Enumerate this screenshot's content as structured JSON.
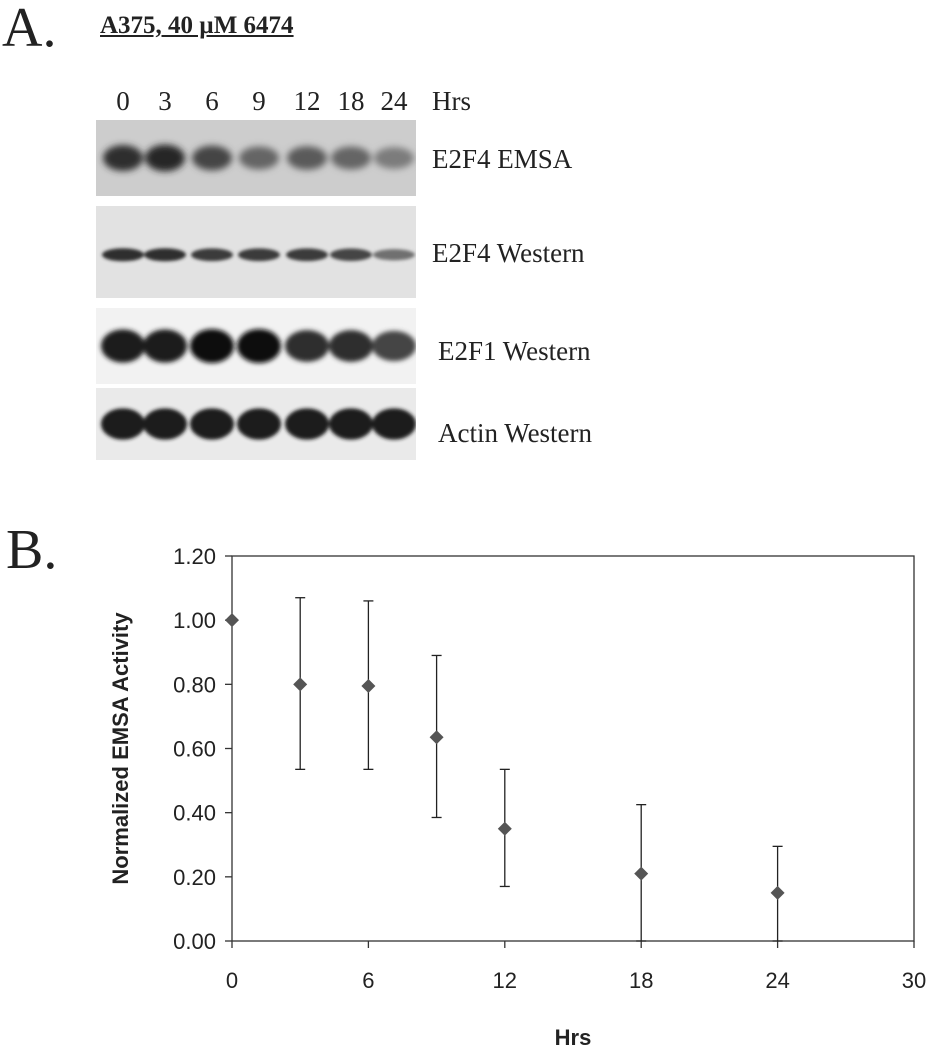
{
  "panel_a": {
    "letter": "A.",
    "title": "A375, 40 µM 6474",
    "lanes": [
      "0",
      "3",
      "6",
      "9",
      "12",
      "18",
      "24"
    ],
    "unit": "Hrs",
    "rows": [
      {
        "label": "E2F4 EMSA",
        "intensity": [
          0.85,
          0.9,
          0.75,
          0.6,
          0.65,
          0.6,
          0.5
        ]
      },
      {
        "label": "E2F4 Western",
        "intensity": [
          0.85,
          0.85,
          0.8,
          0.8,
          0.8,
          0.75,
          0.55
        ]
      },
      {
        "label": "E2F1 Western",
        "intensity": [
          0.95,
          0.95,
          1.0,
          1.0,
          0.85,
          0.85,
          0.75
        ]
      },
      {
        "label": "Actin Western",
        "intensity": [
          0.95,
          0.95,
          0.95,
          0.95,
          0.95,
          0.95,
          0.95
        ]
      }
    ]
  },
  "panel_b": {
    "letter": "B."
  },
  "chart_data": {
    "type": "scatter",
    "xlabel": "Hrs",
    "ylabel": "Normalized EMSA Activity",
    "xlim": [
      0,
      30
    ],
    "ylim": [
      0,
      1.2
    ],
    "x_ticks": [
      "0",
      "6",
      "12",
      "18",
      "24",
      "30"
    ],
    "y_ticks": [
      "0.00",
      "0.20",
      "0.40",
      "0.60",
      "0.80",
      "1.00",
      "1.20"
    ],
    "marker": "diamond",
    "marker_color": "#555555",
    "points": [
      {
        "x": 0,
        "y": 1.0,
        "err_low": 1.0,
        "err_high": 1.0
      },
      {
        "x": 3,
        "y": 0.8,
        "err_low": 0.535,
        "err_high": 1.07
      },
      {
        "x": 6,
        "y": 0.795,
        "err_low": 0.535,
        "err_high": 1.06
      },
      {
        "x": 9,
        "y": 0.635,
        "err_low": 0.385,
        "err_high": 0.89
      },
      {
        "x": 12,
        "y": 0.35,
        "err_low": 0.17,
        "err_high": 0.535
      },
      {
        "x": 18,
        "y": 0.21,
        "err_low": 0.0,
        "err_high": 0.425
      },
      {
        "x": 24,
        "y": 0.15,
        "err_low": 0.0,
        "err_high": 0.295
      }
    ]
  }
}
